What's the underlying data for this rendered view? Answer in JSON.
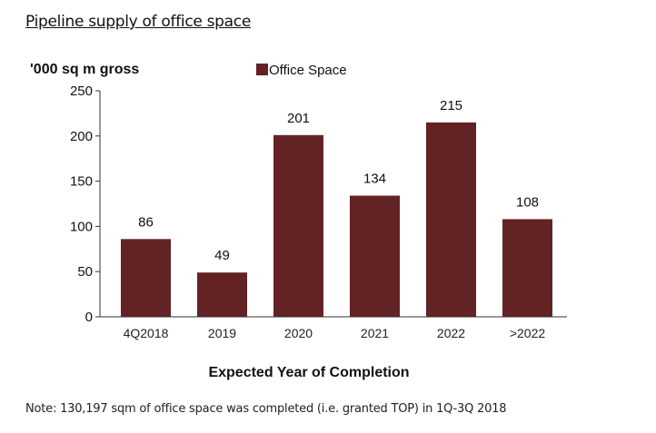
{
  "page": {
    "title": "Pipeline supply of office space",
    "note": "Note: 130,197 sqm of office space was completed (i.e. granted TOP) in 1Q-3Q 2018"
  },
  "chart_data": {
    "type": "bar",
    "title": "",
    "ylabel": "'000 sq m gross",
    "xlabel": "Expected Year of Completion",
    "categories": [
      "4Q2018",
      "2019",
      "2020",
      "2021",
      "2022",
      ">2022"
    ],
    "series": [
      {
        "name": "Office Space",
        "values": [
          86,
          49,
          201,
          134,
          215,
          108
        ],
        "color": "#632325"
      }
    ],
    "data_labels": [
      "86",
      "49",
      "201",
      "134",
      "215",
      "108"
    ],
    "ylim": [
      0,
      250
    ],
    "yticks": [
      0,
      50,
      100,
      150,
      200,
      250
    ],
    "grid": false,
    "legend": "top"
  }
}
